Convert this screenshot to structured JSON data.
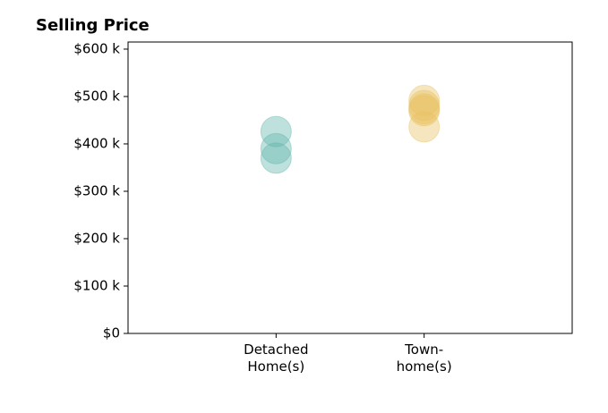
{
  "chart_data": {
    "type": "strip",
    "title": "Selling Price",
    "categories": [
      "Detached\nHome(s)",
      "Town-\nhome(s)"
    ],
    "values": [
      [
        426000,
        390000,
        370000
      ],
      [
        492000,
        481000,
        474000,
        470000,
        436000
      ]
    ],
    "colors": [
      "#5fb5aa",
      "#e9c15e"
    ],
    "opacity": 0.4,
    "ylim": [
      0,
      615000
    ],
    "yticks": [
      {
        "value": 0,
        "label": "$0"
      },
      {
        "value": 100000,
        "label": "$100 k"
      },
      {
        "value": 200000,
        "label": "$200 k"
      },
      {
        "value": 300000,
        "label": "$300 k"
      },
      {
        "value": 400000,
        "label": "$400 k"
      },
      {
        "value": 500000,
        "label": "$500 k"
      },
      {
        "value": 600000,
        "label": "$600 k"
      }
    ]
  }
}
